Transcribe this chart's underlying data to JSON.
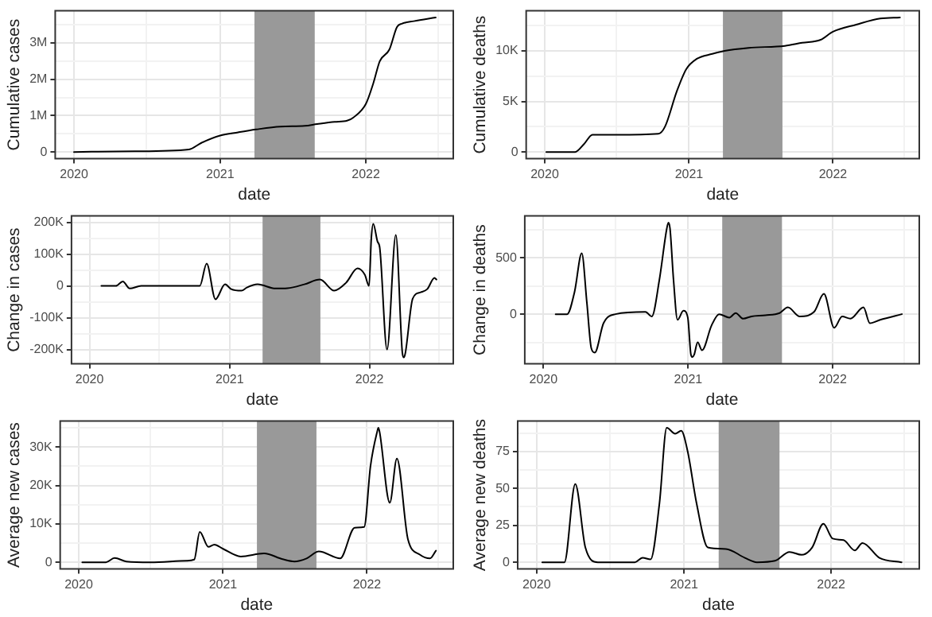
{
  "chart_data": [
    {
      "type": "line",
      "xlabel": "date",
      "ylabel": "Cumulative cases",
      "color": "#000000",
      "grid": true,
      "line_style": "solid",
      "marker": "none",
      "x": [
        "2020-01-01",
        "2020-03-01",
        "2020-06-01",
        "2020-10-15",
        "2020-11-15",
        "2021-01-01",
        "2021-02-15",
        "2021-04-01",
        "2021-06-01",
        "2021-08-01",
        "2021-09-01",
        "2021-10-15",
        "2021-11-15",
        "2021-12-01",
        "2022-01-01",
        "2022-01-20",
        "2022-02-05",
        "2022-03-01",
        "2022-03-20",
        "2022-04-01",
        "2022-05-01",
        "2022-06-25"
      ],
      "values": [
        0,
        10000,
        20000,
        70000,
        250000,
        450000,
        540000,
        620000,
        700000,
        720000,
        770000,
        830000,
        860000,
        950000,
        1320000,
        1900000,
        2500000,
        2820000,
        3440000,
        3530000,
        3600000,
        3700000
      ],
      "xlim": [
        "2019-11-15",
        "2022-08-08"
      ],
      "xticks": [
        {
          "value": "2020-01-01",
          "label": "2020"
        },
        {
          "value": "2020-07-01",
          "label": null
        },
        {
          "value": "2021-01-01",
          "label": "2021"
        },
        {
          "value": "2022-01-01",
          "label": "2022"
        },
        {
          "value": "2022-07-01",
          "label": null
        }
      ],
      "ylim": [
        -185000,
        3885000
      ],
      "yticks": [
        {
          "value": 0,
          "label": "0"
        },
        {
          "value": 500000,
          "label": null
        },
        {
          "value": 1000000,
          "label": "1M"
        },
        {
          "value": 1500000,
          "label": null
        },
        {
          "value": 2000000,
          "label": "2M"
        },
        {
          "value": 2500000,
          "label": null
        },
        {
          "value": 3000000,
          "label": "3M"
        },
        {
          "value": 3500000,
          "label": null
        }
      ],
      "bands": [
        {
          "axis": "x",
          "from": "2021-03-28",
          "to": "2021-08-26",
          "color": "#999999"
        }
      ]
    },
    {
      "type": "line",
      "xlabel": "date",
      "ylabel": "Cumulative deaths",
      "color": "#000000",
      "grid": true,
      "line_style": "solid",
      "marker": "none",
      "x": [
        "2020-01-05",
        "2020-03-18",
        "2020-04-10",
        "2020-05-01",
        "2020-07-01",
        "2020-10-15",
        "2020-11-01",
        "2020-12-01",
        "2020-12-25",
        "2021-01-20",
        "2021-03-01",
        "2021-04-01",
        "2021-06-01",
        "2021-09-01",
        "2021-10-15",
        "2021-12-01",
        "2022-01-01",
        "2022-03-01",
        "2022-05-01",
        "2022-06-20"
      ],
      "values": [
        0,
        0,
        800,
        1700,
        1700,
        1800,
        2500,
        6000,
        8200,
        9200,
        9700,
        10000,
        10300,
        10500,
        10800,
        11100,
        11900,
        12600,
        13200,
        13300
      ],
      "xlim": [
        "2019-11-15",
        "2022-08-08"
      ],
      "xticks": [
        {
          "value": "2020-01-01",
          "label": "2020"
        },
        {
          "value": "2020-07-01",
          "label": null
        },
        {
          "value": "2021-01-01",
          "label": "2021"
        },
        {
          "value": "2022-01-01",
          "label": "2022"
        },
        {
          "value": "2022-07-01",
          "label": null
        }
      ],
      "ylim": [
        -665,
        13965
      ],
      "yticks": [
        {
          "value": 0,
          "label": "0"
        },
        {
          "value": 2500,
          "label": null
        },
        {
          "value": 5000,
          "label": "5K"
        },
        {
          "value": 7500,
          "label": null
        },
        {
          "value": 10000,
          "label": "10K"
        },
        {
          "value": 12500,
          "label": null
        }
      ],
      "bands": [
        {
          "axis": "x",
          "from": "2021-03-28",
          "to": "2021-08-26",
          "color": "#999999"
        }
      ]
    },
    {
      "type": "line",
      "xlabel": "date",
      "ylabel": "Change in cases",
      "color": "#000000",
      "grid": true,
      "line_style": "solid",
      "marker": "none",
      "x": [
        "2020-02-01",
        "2020-03-10",
        "2020-03-28",
        "2020-04-15",
        "2020-05-15",
        "2020-10-15",
        "2020-11-02",
        "2020-11-25",
        "2020-12-20",
        "2021-01-05",
        "2021-02-01",
        "2021-02-15",
        "2021-03-15",
        "2021-05-01",
        "2021-06-01",
        "2021-07-15",
        "2021-08-25",
        "2021-10-01",
        "2021-11-01",
        "2021-12-01",
        "2021-12-20",
        "2021-12-31",
        "2022-01-06",
        "2022-01-11",
        "2022-01-22",
        "2022-01-28",
        "2022-02-16",
        "2022-03-11",
        "2022-03-28",
        "2022-04-01",
        "2022-04-05",
        "2022-04-24",
        "2022-05-15",
        "2022-06-01",
        "2022-06-20",
        "2022-06-25"
      ],
      "values": [
        0,
        0,
        14000,
        -8000,
        0,
        0,
        70000,
        -42000,
        5000,
        -10000,
        -15000,
        -5000,
        5000,
        -8000,
        -7000,
        5000,
        20000,
        -15000,
        10000,
        55000,
        35000,
        0,
        150000,
        195000,
        140000,
        120000,
        -200000,
        160000,
        -210000,
        -225000,
        -210000,
        -40000,
        -20000,
        -10000,
        25000,
        20000
      ],
      "xlim": [
        "2019-11-15",
        "2022-08-08"
      ],
      "xticks": [
        {
          "value": "2020-01-01",
          "label": "2020"
        },
        {
          "value": "2020-07-01",
          "label": null
        },
        {
          "value": "2021-01-01",
          "label": "2021"
        },
        {
          "value": "2022-01-01",
          "label": "2022"
        },
        {
          "value": "2022-07-01",
          "label": null
        }
      ],
      "ylim": [
        -245000,
        220000
      ],
      "yticks": [
        {
          "value": -200000,
          "label": "-200K"
        },
        {
          "value": -150000,
          "label": null
        },
        {
          "value": -100000,
          "label": "-100K"
        },
        {
          "value": -50000,
          "label": null
        },
        {
          "value": 0,
          "label": "0"
        },
        {
          "value": 50000,
          "label": null
        },
        {
          "value": 100000,
          "label": "100K"
        },
        {
          "value": 150000,
          "label": null
        },
        {
          "value": 200000,
          "label": "200K"
        }
      ],
      "bands": [
        {
          "axis": "x",
          "from": "2021-03-28",
          "to": "2021-08-26",
          "color": "#999999"
        }
      ]
    },
    {
      "type": "line",
      "xlabel": "date",
      "ylabel": "Change in deaths",
      "color": "#000000",
      "grid": true,
      "line_style": "solid",
      "marker": "none",
      "x": [
        "2020-02-01",
        "2020-03-01",
        "2020-03-20",
        "2020-04-07",
        "2020-04-20",
        "2020-05-01",
        "2020-05-10",
        "2020-06-01",
        "2020-07-01",
        "2020-09-15",
        "2020-10-01",
        "2020-10-20",
        "2020-11-08",
        "2020-11-12",
        "2020-11-16",
        "2020-11-25",
        "2020-12-05",
        "2020-12-20",
        "2020-12-31",
        "2021-01-08",
        "2021-01-12",
        "2021-01-16",
        "2021-01-25",
        "2021-02-05",
        "2021-03-01",
        "2021-03-20",
        "2021-04-15",
        "2021-05-01",
        "2021-05-20",
        "2021-06-10",
        "2021-07-15",
        "2021-08-20",
        "2021-09-10",
        "2021-10-10",
        "2021-11-15",
        "2021-12-10",
        "2022-01-05",
        "2022-01-25",
        "2022-02-15",
        "2022-03-20",
        "2022-04-05",
        "2022-05-01",
        "2022-06-25"
      ],
      "values": [
        0,
        0,
        200,
        540,
        100,
        -300,
        -340,
        -80,
        0,
        20,
        -20,
        300,
        760,
        810,
        760,
        300,
        -50,
        30,
        -30,
        -360,
        -380,
        -360,
        -250,
        -320,
        -100,
        0,
        -30,
        10,
        -40,
        -20,
        -10,
        10,
        60,
        -20,
        20,
        180,
        -120,
        -20,
        -40,
        60,
        -80,
        -50,
        0
      ],
      "xlim": [
        "2019-11-15",
        "2022-08-08"
      ],
      "xticks": [
        {
          "value": "2020-01-01",
          "label": "2020"
        },
        {
          "value": "2020-07-01",
          "label": null
        },
        {
          "value": "2021-01-01",
          "label": "2021"
        },
        {
          "value": "2022-01-01",
          "label": "2022"
        },
        {
          "value": "2022-07-01",
          "label": null
        }
      ],
      "ylim": [
        -440,
        870
      ],
      "yticks": [
        {
          "value": -250,
          "label": null
        },
        {
          "value": 0,
          "label": "0"
        },
        {
          "value": 250,
          "label": null
        },
        {
          "value": 500,
          "label": "500"
        },
        {
          "value": 750,
          "label": null
        }
      ],
      "bands": [
        {
          "axis": "x",
          "from": "2021-03-28",
          "to": "2021-08-26",
          "color": "#999999"
        }
      ]
    },
    {
      "type": "line",
      "xlabel": "date",
      "ylabel": "Average new cases",
      "color": "#000000",
      "grid": true,
      "line_style": "solid",
      "marker": "none",
      "x": [
        "2020-01-10",
        "2020-03-10",
        "2020-04-01",
        "2020-05-01",
        "2020-07-01",
        "2020-10-01",
        "2020-10-20",
        "2020-11-03",
        "2020-11-25",
        "2020-12-10",
        "2021-01-01",
        "2021-02-15",
        "2021-04-15",
        "2021-06-01",
        "2021-07-01",
        "2021-08-01",
        "2021-09-01",
        "2021-10-25",
        "2021-12-01",
        "2021-12-25",
        "2022-01-10",
        "2022-01-27",
        "2022-01-30",
        "2022-02-02",
        "2022-02-28",
        "2022-03-18",
        "2022-04-15",
        "2022-05-15",
        "2022-06-10",
        "2022-06-25"
      ],
      "values": [
        0,
        0,
        1100,
        200,
        0,
        400,
        700,
        7900,
        4000,
        4600,
        3500,
        1500,
        2300,
        800,
        200,
        1000,
        2800,
        1000,
        9000,
        9200,
        25000,
        34000,
        35000,
        34000,
        15500,
        27000,
        6000,
        2000,
        1000,
        3000
      ],
      "xlim": [
        "2019-11-15",
        "2022-08-08"
      ],
      "xticks": [
        {
          "value": "2020-01-01",
          "label": "2020"
        },
        {
          "value": "2020-07-01",
          "label": null
        },
        {
          "value": "2021-01-01",
          "label": "2021"
        },
        {
          "value": "2022-01-01",
          "label": "2022"
        },
        {
          "value": "2022-07-01",
          "label": null
        }
      ],
      "ylim": [
        -1750,
        36750
      ],
      "yticks": [
        {
          "value": 0,
          "label": "0"
        },
        {
          "value": 5000,
          "label": null
        },
        {
          "value": 10000,
          "label": "10K"
        },
        {
          "value": 15000,
          "label": null
        },
        {
          "value": 20000,
          "label": "20K"
        },
        {
          "value": 25000,
          "label": null
        },
        {
          "value": 30000,
          "label": "30K"
        },
        {
          "value": 35000,
          "label": null
        }
      ],
      "bands": [
        {
          "axis": "x",
          "from": "2021-03-28",
          "to": "2021-08-26",
          "color": "#999999"
        }
      ]
    },
    {
      "type": "line",
      "xlabel": "date",
      "ylabel": "Average new deaths",
      "color": "#000000",
      "grid": true,
      "line_style": "solid",
      "marker": "none",
      "x": [
        "2020-01-15",
        "2020-03-10",
        "2020-04-06",
        "2020-05-01",
        "2020-06-01",
        "2020-09-01",
        "2020-09-20",
        "2020-10-10",
        "2020-11-01",
        "2020-11-19",
        "2020-12-10",
        "2020-12-25",
        "2021-01-10",
        "2021-02-01",
        "2021-03-01",
        "2021-04-15",
        "2021-06-01",
        "2021-07-01",
        "2021-08-15",
        "2021-09-20",
        "2021-10-20",
        "2021-11-15",
        "2021-12-13",
        "2022-01-05",
        "2022-02-01",
        "2022-03-01",
        "2022-03-20",
        "2022-05-01",
        "2022-06-25"
      ],
      "values": [
        0,
        0,
        53,
        10,
        0,
        0,
        3,
        2,
        40,
        91,
        87,
        89,
        75,
        40,
        10,
        9,
        3,
        0,
        1,
        7,
        5,
        10,
        26,
        16,
        15,
        8,
        13,
        3,
        0
      ],
      "xlim": [
        "2019-11-15",
        "2022-08-08"
      ],
      "xticks": [
        {
          "value": "2020-01-01",
          "label": "2020"
        },
        {
          "value": "2020-07-01",
          "label": null
        },
        {
          "value": "2021-01-01",
          "label": "2021"
        },
        {
          "value": "2022-01-01",
          "label": "2022"
        },
        {
          "value": "2022-07-01",
          "label": null
        }
      ],
      "ylim": [
        -4.55,
        95.55
      ],
      "yticks": [
        {
          "value": 0,
          "label": "0"
        },
        {
          "value": 12.5,
          "label": null
        },
        {
          "value": 25,
          "label": "25"
        },
        {
          "value": 37.5,
          "label": null
        },
        {
          "value": 50,
          "label": "50"
        },
        {
          "value": 62.5,
          "label": null
        },
        {
          "value": 75,
          "label": "75"
        },
        {
          "value": 87.5,
          "label": null
        }
      ],
      "bands": [
        {
          "axis": "x",
          "from": "2021-03-28",
          "to": "2021-08-26",
          "color": "#999999"
        }
      ]
    }
  ]
}
